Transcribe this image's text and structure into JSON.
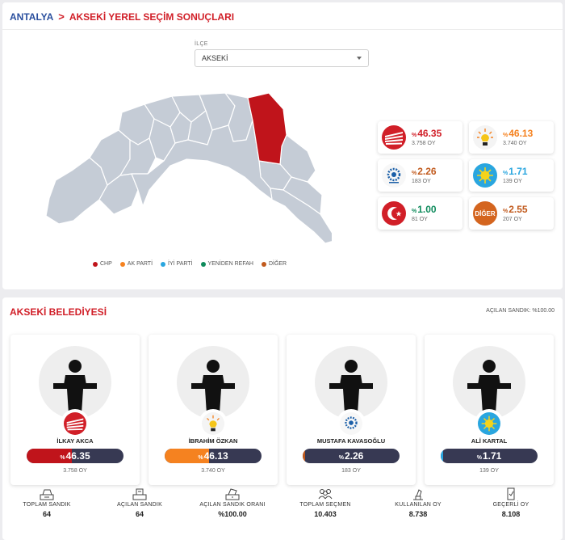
{
  "breadcrumb": {
    "province": "ANTALYA",
    "separator": ">",
    "page": "AKSEKİ YEREL SEÇİM SONUÇLARI"
  },
  "district_select": {
    "label": "İLÇE",
    "value": "AKSEKİ"
  },
  "colors": {
    "chp": "#d11f28",
    "akp": "#f58220",
    "iyi": "#2aa6df",
    "yrp": "#0f8b5c",
    "diger": "#c15a1d",
    "map_grey": "#c5ccd6",
    "map_highlight": "#c0141b"
  },
  "legend": [
    {
      "label": "CHP",
      "color": "#c0141b"
    },
    {
      "label": "AK PARTİ",
      "color": "#f58220"
    },
    {
      "label": "İYİ PARTİ",
      "color": "#2aa6df"
    },
    {
      "label": "YENİDEN REFAH",
      "color": "#0f8b5c"
    },
    {
      "label": "DİĞER",
      "color": "#c15a1d"
    }
  ],
  "results": [
    {
      "party": "CHP",
      "logo": "chp-logo-icon",
      "percent_sign": "%",
      "percent": "46.35",
      "votes": "3.758 OY",
      "color": "#d11f28"
    },
    {
      "party": "AK PARTİ",
      "logo": "akp-logo-icon",
      "percent_sign": "%",
      "percent": "46.13",
      "votes": "3.740 OY",
      "color": "#f58220"
    },
    {
      "party": "YRP",
      "logo": "party-logo-icon",
      "percent_sign": "%",
      "percent": "2.26",
      "votes": "183 OY",
      "color": "#c15a1d"
    },
    {
      "party": "İYİ PARTİ",
      "logo": "iyi-logo-icon",
      "percent_sign": "%",
      "percent": "1.71",
      "votes": "139 OY",
      "color": "#2aa6df"
    },
    {
      "party": "YENİDEN REFAH",
      "logo": "yrp-logo-icon",
      "percent_sign": "%",
      "percent": "1.00",
      "votes": "81 OY",
      "color": "#0f8b5c"
    },
    {
      "party": "DİĞER",
      "logo": "diger-logo-icon",
      "logo_text": "DİĞER",
      "percent_sign": "%",
      "percent": "2.55",
      "votes": "207 OY",
      "color": "#c15a1d"
    }
  ],
  "municipality": {
    "title": "AKSEKİ BELEDİYESİ",
    "opened_ballot": "AÇILAN SANDIK: %100.00"
  },
  "candidates": [
    {
      "name": "İLKAY AKCA",
      "party_logo": "chp-logo-icon",
      "percent_sign": "%",
      "percent": "46.35",
      "fill": 0.4635,
      "votes": "3.758 OY",
      "color": "#c0141b"
    },
    {
      "name": "İBRAHİM ÖZKAN",
      "party_logo": "akp-logo-icon",
      "percent_sign": "%",
      "percent": "46.13",
      "fill": 0.4613,
      "votes": "3.740 OY",
      "color": "#f58220"
    },
    {
      "name": "MUSTAFA KAVASOĞLU",
      "party_logo": "party-logo-icon",
      "percent_sign": "%",
      "percent": "2.26",
      "fill": 0.0226,
      "votes": "183 OY",
      "color": "#c15a1d"
    },
    {
      "name": "ALİ KARTAL",
      "party_logo": "iyi-logo-icon",
      "percent_sign": "%",
      "percent": "1.71",
      "fill": 0.0171,
      "votes": "139 OY",
      "color": "#2aa6df"
    }
  ],
  "stats": [
    {
      "label": "TOPLAM SANDIK",
      "value": "64",
      "icon": "ballot-box-icon"
    },
    {
      "label": "AÇILAN SANDIK",
      "value": "64",
      "icon": "open-ballot-box-icon"
    },
    {
      "label": "AÇILAN SANDIK ORANI",
      "value": "%100.00",
      "icon": "ballot-percent-icon"
    },
    {
      "label": "TOPLAM SEÇMEN",
      "value": "10.403",
      "icon": "voters-icon"
    },
    {
      "label": "KULLANILAN OY",
      "value": "8.738",
      "icon": "vote-cast-icon"
    },
    {
      "label": "GEÇERLİ OY",
      "value": "8.108",
      "icon": "valid-vote-icon"
    }
  ]
}
